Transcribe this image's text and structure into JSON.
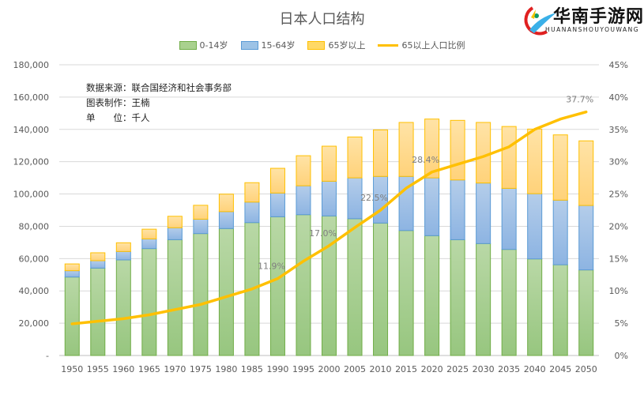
{
  "chart_data": {
    "type": "bar",
    "stacked": true,
    "title": "日本人口结构",
    "categories": [
      "1950",
      "1955",
      "1960",
      "1965",
      "1970",
      "1975",
      "1980",
      "1985",
      "1990",
      "1995",
      "2000",
      "2005",
      "2010",
      "2015",
      "2020",
      "2025",
      "2030",
      "2035",
      "2040",
      "2045",
      "2050"
    ],
    "series": [
      {
        "name": "0-14岁",
        "type": "bar",
        "axis": "left",
        "color": "#a9d18e",
        "values": [
          48600,
          54100,
          59200,
          66200,
          71700,
          75500,
          78600,
          82300,
          85900,
          87200,
          86400,
          84700,
          82000,
          77400,
          74200,
          71700,
          69300,
          65700,
          59800,
          56200,
          53000
        ]
      },
      {
        "name": "15-64岁",
        "type": "bar",
        "axis": "left",
        "color": "#9dc3e6",
        "values": [
          3900,
          4600,
          5200,
          6000,
          7400,
          8900,
          10500,
          12700,
          14700,
          17900,
          21500,
          25300,
          28900,
          33500,
          35800,
          37000,
          37500,
          37800,
          40400,
          40000,
          39900
        ]
      },
      {
        "name": "65岁以上",
        "type": "bar",
        "axis": "left",
        "color": "#ffd966",
        "values": [
          4200,
          4900,
          5400,
          6000,
          7100,
          8600,
          10800,
          12000,
          15300,
          18600,
          21700,
          25300,
          28800,
          33400,
          36400,
          36900,
          37500,
          38300,
          40000,
          40400,
          40000
        ]
      },
      {
        "name": "65以上人口比例",
        "type": "line",
        "axis": "right",
        "color": "#ffc000",
        "values": [
          4.9,
          5.3,
          5.7,
          6.3,
          7.1,
          7.9,
          9.1,
          10.3,
          11.9,
          14.6,
          17.0,
          19.8,
          22.5,
          25.9,
          28.4,
          29.6,
          30.8,
          32.3,
          35.0,
          36.6,
          37.7
        ]
      }
    ],
    "data_labels": [
      {
        "category": "1990",
        "text": "11.9%"
      },
      {
        "category": "2000",
        "text": "17.0%"
      },
      {
        "category": "2010",
        "text": "22.5%"
      },
      {
        "category": "2020",
        "text": "28.4%"
      },
      {
        "category": "2050",
        "text": "37.7%"
      }
    ],
    "ylim": [
      0,
      180000
    ],
    "yticks": [
      "-",
      "20,000",
      "40,000",
      "60,000",
      "80,000",
      "100,000",
      "120,000",
      "140,000",
      "160,000",
      "180,000"
    ],
    "y2lim": [
      0,
      45
    ],
    "y2ticks": [
      "0%",
      "5%",
      "10%",
      "15%",
      "20%",
      "25%",
      "30%",
      "35%",
      "40%",
      "45%"
    ],
    "grid": true,
    "legend": "top",
    "xlabel": "",
    "ylabel": ""
  },
  "annotation": {
    "line1": "数据来源：联合国经济和社会事务部",
    "line2": "图表制作：王楠",
    "line3": "单　　位：千人"
  },
  "watermark": {
    "text": "华南手游网",
    "subtext": "HUANANSHOUYOUWANG"
  }
}
